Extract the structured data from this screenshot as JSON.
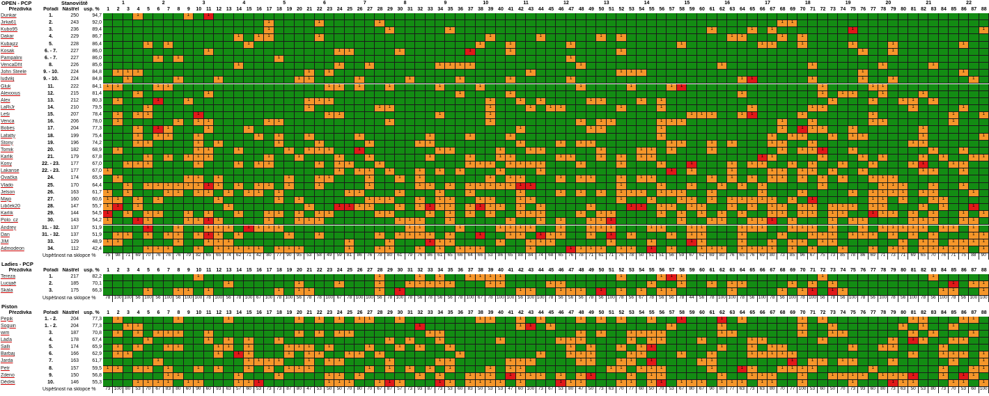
{
  "sections": [
    {
      "id": "open",
      "title": "OPEN - PCP",
      "group_label": "Stanoviště",
      "group_numbers": [
        "1",
        "2",
        "3",
        "4",
        "5",
        "6",
        "7",
        "8",
        "9",
        "10",
        "11",
        "12",
        "13",
        "14",
        "15",
        "16",
        "17",
        "18",
        "19",
        "20",
        "21",
        "22"
      ],
      "headers": {
        "nick": "Přezdívka",
        "rank": "Pořadí",
        "score": "Nástřel",
        "pct": "usp. %"
      },
      "players": [
        {
          "name": "Dunkar",
          "rank": "1.",
          "score": "250",
          "pct": "94,7"
        },
        {
          "name": "Jirka61",
          "rank": "2.",
          "score": "243",
          "pct": "92,0"
        },
        {
          "name": "Kubo95",
          "rank": "3.",
          "score": "236",
          "pct": "89,4"
        },
        {
          "name": "Dakar",
          "rank": "4.",
          "score": "229",
          "pct": "86,7"
        },
        {
          "name": "Kubajzz",
          "rank": "5.",
          "score": "228",
          "pct": "86,4"
        },
        {
          "name": "Kosak",
          "rank": "6. - 7.",
          "score": "227",
          "pct": "86,0"
        },
        {
          "name": "Pampalini",
          "rank": "6. - 7.",
          "score": "227",
          "pct": "86,0"
        },
        {
          "name": "VencaDřít",
          "rank": "8.",
          "score": "226",
          "pct": "85,6"
        },
        {
          "name": "John Steele",
          "rank": "9. - 10.",
          "score": "224",
          "pct": "84,8"
        },
        {
          "name": "ludvikj",
          "rank": "9. - 10.",
          "score": "224",
          "pct": "84,8"
        },
        {
          "name": "Gluk",
          "rank": "11.",
          "score": "222",
          "pct": "84,1"
        },
        {
          "name": "Alexxxus",
          "rank": "12.",
          "score": "215",
          "pct": "81,4"
        },
        {
          "name": "Alex",
          "rank": "13.",
          "score": "212",
          "pct": "80,3"
        },
        {
          "name": "LaRiJr",
          "rank": "14.",
          "score": "210",
          "pct": "79,5"
        },
        {
          "name": "Leši",
          "rank": "15.",
          "score": "207",
          "pct": "78,4"
        },
        {
          "name": "Venca",
          "rank": "16.",
          "score": "206",
          "pct": "78,0"
        },
        {
          "name": "Bobes",
          "rank": "17.",
          "score": "204",
          "pct": "77,3"
        },
        {
          "name": "Lafatty",
          "rank": "18.",
          "score": "199",
          "pct": "75,4"
        },
        {
          "name": "Stony",
          "rank": "19.",
          "score": "196",
          "pct": "74,2"
        },
        {
          "name": "Tomik",
          "rank": "20.",
          "score": "182",
          "pct": "68,9"
        },
        {
          "name": "Karlik",
          "rank": "21.",
          "score": "179",
          "pct": "67,8"
        },
        {
          "name": "Kony",
          "rank": "22. - 23.",
          "score": "177",
          "pct": "67,0"
        },
        {
          "name": "Lakanse",
          "rank": "22. - 23.",
          "score": "177",
          "pct": "67,0"
        },
        {
          "name": "Ovačka",
          "rank": "24.",
          "score": "174",
          "pct": "65,9"
        },
        {
          "name": "Vlado",
          "rank": "25.",
          "score": "170",
          "pct": "64,4"
        },
        {
          "name": "Jelson",
          "rank": "26.",
          "score": "163",
          "pct": "61,7"
        },
        {
          "name": "Majo",
          "rank": "27.",
          "score": "160",
          "pct": "60,6"
        },
        {
          "name": "Libček20",
          "rank": "28.",
          "score": "147",
          "pct": "55,7"
        },
        {
          "name": "Karlík",
          "rank": "29.",
          "score": "144",
          "pct": "54,5"
        },
        {
          "name": "Polo_cz",
          "rank": "30.",
          "score": "143",
          "pct": "54,2"
        },
        {
          "name": "Andrey",
          "rank": "31. - 32.",
          "score": "137",
          "pct": "51,9"
        },
        {
          "name": "Dan",
          "rank": "31. - 32.",
          "score": "137",
          "pct": "51,9"
        },
        {
          "name": "JIM",
          "rank": "33.",
          "score": "129",
          "pct": "48,9"
        },
        {
          "name": "Admodeon",
          "rank": "34.",
          "score": "112",
          "pct": "42,4"
        }
      ],
      "footer_label": "Úspěšnost na sklopce %",
      "footer_values": [
        "75",
        "98",
        "71",
        "69",
        "70",
        "76",
        "76",
        "76",
        "79",
        "82",
        "65",
        "65",
        "74",
        "62",
        "71",
        "42",
        "80",
        "77",
        "90",
        "95",
        "53",
        "58",
        "49",
        "59",
        "81",
        "86",
        "76",
        "78",
        "80",
        "61",
        "79",
        "76",
        "86",
        "61",
        "65",
        "66",
        "64",
        "66",
        "53",
        "86",
        "65",
        "88",
        "84",
        "74",
        "68",
        "65",
        "76",
        "78",
        "71",
        "61",
        "71",
        "76",
        "78",
        "50",
        "51",
        "51",
        "56",
        "59",
        "67",
        "62",
        "69",
        "80",
        "76",
        "65",
        "76",
        "69",
        "80",
        "73",
        "85",
        "96",
        "67",
        "75",
        "73",
        "85",
        "78",
        "86",
        "69",
        "71",
        "73",
        "71",
        "69",
        "65",
        "70",
        "76",
        "71",
        "75",
        "88",
        "90"
      ]
    },
    {
      "id": "ladies",
      "title": "Ladies - PCP",
      "headers": {
        "nick": "Přezdívka",
        "rank": "Pořadí",
        "score": "Nástřel",
        "pct": "usp. %"
      },
      "players": [
        {
          "name": "Tereza",
          "rank": "1.",
          "score": "217",
          "pct": "82,2"
        },
        {
          "name": "Lucijaě",
          "rank": "2.",
          "score": "185",
          "pct": "70,1"
        },
        {
          "name": "Skála",
          "rank": "3.",
          "score": "175",
          "pct": "66,3"
        }
      ],
      "footer_label": "Úspěšnost na sklopce %",
      "footer_values": [
        "78",
        "100",
        "100",
        "56",
        "100",
        "56",
        "100",
        "56",
        "100",
        "100",
        "78",
        "100",
        "56",
        "78",
        "100",
        "67",
        "100",
        "78",
        "100",
        "56",
        "78",
        "78",
        "100",
        "67",
        "78",
        "100",
        "100",
        "56",
        "78",
        "100",
        "78",
        "56",
        "78",
        "56",
        "56",
        "78",
        "100",
        "67",
        "78",
        "100",
        "100",
        "56",
        "100",
        "100",
        "78",
        "56",
        "56",
        "56",
        "78",
        "56",
        "100",
        "78",
        "56",
        "67",
        "78",
        "56",
        "56",
        "78",
        "44",
        "56",
        "78",
        "100",
        "100",
        "78",
        "56",
        "100",
        "78",
        "56",
        "100",
        "78",
        "100",
        "56",
        "78",
        "56",
        "100",
        "78",
        "56",
        "100",
        "78",
        "56",
        "100",
        "78",
        "56",
        "100",
        "78",
        "56",
        "100",
        "100"
      ]
    },
    {
      "id": "piston",
      "title": "Piston",
      "headers": {
        "nick": "Přezdívka",
        "rank": "Pořadí",
        "score": "Nástřel",
        "pct": "usp. %"
      },
      "players": [
        {
          "name": "Pepik",
          "rank": "1. - 2.",
          "score": "204",
          "pct": "77,3"
        },
        {
          "name": "Soguin",
          "rank": "1. - 2.",
          "score": "204",
          "pct": "77,3"
        },
        {
          "name": "wim",
          "rank": "3.",
          "score": "187",
          "pct": "70,8"
        },
        {
          "name": "Láďa",
          "rank": "4.",
          "score": "178",
          "pct": "67,4"
        },
        {
          "name": "Salli",
          "rank": "5.",
          "score": "174",
          "pct": "65,9"
        },
        {
          "name": "Barbaj",
          "rank": "6.",
          "score": "166",
          "pct": "62,9"
        },
        {
          "name": "Jarda",
          "rank": "7.",
          "score": "163",
          "pct": "61,7"
        },
        {
          "name": "Petr",
          "rank": "8.",
          "score": "157",
          "pct": "59,5"
        },
        {
          "name": "Zdeno",
          "rank": "9.",
          "score": "150",
          "pct": "56,8"
        },
        {
          "name": "Děďek",
          "rank": "10.",
          "score": "146",
          "pct": "55,3"
        }
      ],
      "footer_label": "Úspěšnost na sklopce %",
      "footer_values": [
        "73",
        "100",
        "80",
        "53",
        "70",
        "67",
        "83",
        "80",
        "60",
        "90",
        "60",
        "93",
        "63",
        "57",
        "60",
        "53",
        "73",
        "73",
        "87",
        "80",
        "47",
        "53",
        "50",
        "50",
        "70",
        "80",
        "70",
        "67",
        "87",
        "57",
        "73",
        "93",
        "87",
        "73",
        "53",
        "60",
        "83",
        "50",
        "53",
        "53",
        "47",
        "60",
        "100",
        "73",
        "67",
        "53",
        "80",
        "47",
        "50",
        "73",
        "63",
        "70",
        "77",
        "60",
        "50",
        "70",
        "53",
        "67",
        "80",
        "67",
        "90",
        "80",
        "77",
        "63",
        "73",
        "63",
        "80",
        "70",
        "77",
        "100",
        "53",
        "60",
        "50",
        "70",
        "73",
        "93",
        "60",
        "80",
        "73",
        "63",
        "50",
        "53",
        "80",
        "73",
        "70",
        "53",
        "60",
        "100"
      ]
    }
  ],
  "colors": {
    "hit": "#138c13",
    "miss": "#f5962a",
    "special": "#e01818"
  }
}
